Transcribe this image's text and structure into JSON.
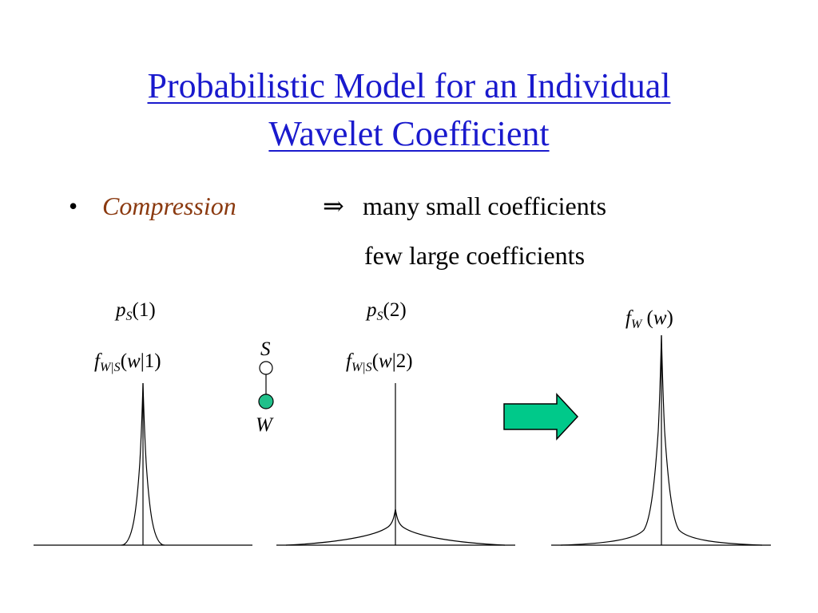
{
  "title": {
    "line1": "Probabilistic Model for an Individual",
    "line2": "Wavelet Coefficient"
  },
  "bullet": {
    "symbol": "•",
    "keyword": "Compression",
    "implies": "⇒",
    "line1": "many small coefficients",
    "line2": "few large coefficients"
  },
  "plots": {
    "p1": {
      "p": "p",
      "sub": "S",
      "arg": "(1)"
    },
    "f1": {
      "f": "f",
      "sub": "W|S",
      "open": "(",
      "w": "w",
      "rest": "|1)"
    },
    "p2": {
      "p": "p",
      "sub": "S",
      "arg": "(2)"
    },
    "f2": {
      "f": "f",
      "sub": "W|S",
      "open": "(",
      "w": "w",
      "rest": "|2)"
    },
    "fw": {
      "f": "f",
      "sub": "W",
      "open": " (",
      "w": "w",
      "close": ")"
    }
  },
  "node_labels": {
    "state": "S",
    "coef": "W"
  },
  "colors": {
    "title": "#1a1acd",
    "keyword": "#8b3a10",
    "node_fill": "#21c08a",
    "arrow_fill": "#00c98a"
  }
}
